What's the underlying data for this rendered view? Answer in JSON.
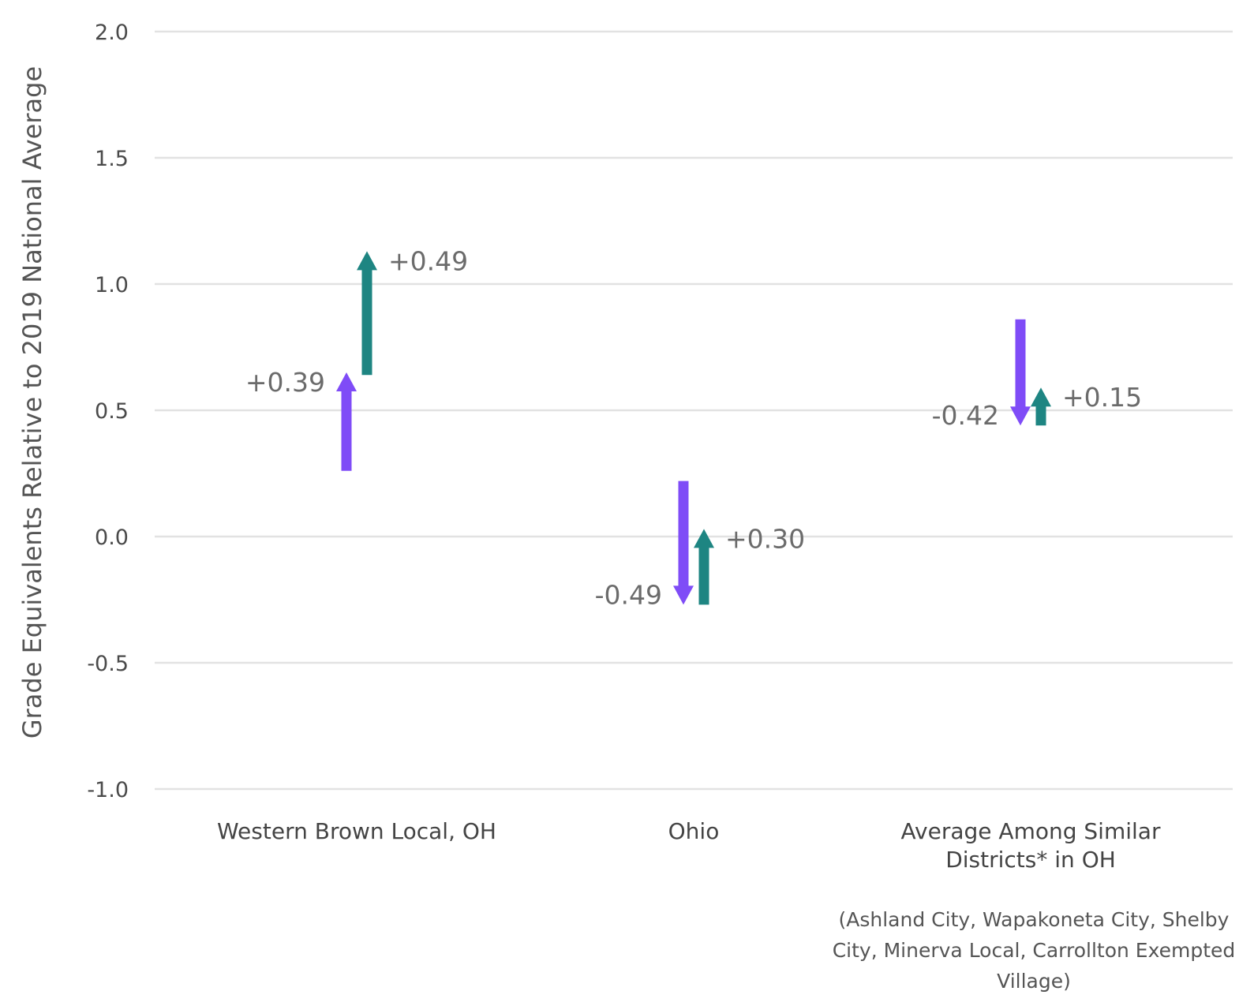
{
  "chart_data": {
    "type": "arrow",
    "title": "",
    "ylabel": "Grade Equivalents Relative to 2019 National Average",
    "ylim": [
      -1.0,
      2.0
    ],
    "yticks": [
      "2.0",
      "1.5",
      "1.0",
      "0.5",
      "0.0",
      "-0.5",
      "-1.0"
    ],
    "categories": [
      [
        "Western Brown Local, OH"
      ],
      [
        "Ohio"
      ],
      [
        "Average Among Similar",
        "Districts* in OH"
      ]
    ],
    "note": "(Ashland City, Wapakoneta City, Shelby City, Minerva Local, Carrollton Exempted Village)",
    "colors": {
      "first": "#7f4cf7",
      "second": "#1e8582"
    },
    "series": [
      {
        "color_key": "first",
        "arrows": [
          {
            "start": 0.26,
            "end": 0.65,
            "label": "+0.39"
          },
          {
            "start": 0.22,
            "end": -0.27,
            "label": "-0.49"
          },
          {
            "start": 0.86,
            "end": 0.44,
            "label": "-0.42"
          }
        ]
      },
      {
        "color_key": "second",
        "arrows": [
          {
            "start": 0.64,
            "end": 1.13,
            "label": "+0.49"
          },
          {
            "start": -0.27,
            "end": 0.03,
            "label": "+0.30"
          },
          {
            "start": 0.44,
            "end": 0.59,
            "label": "+0.15"
          }
        ]
      }
    ]
  }
}
